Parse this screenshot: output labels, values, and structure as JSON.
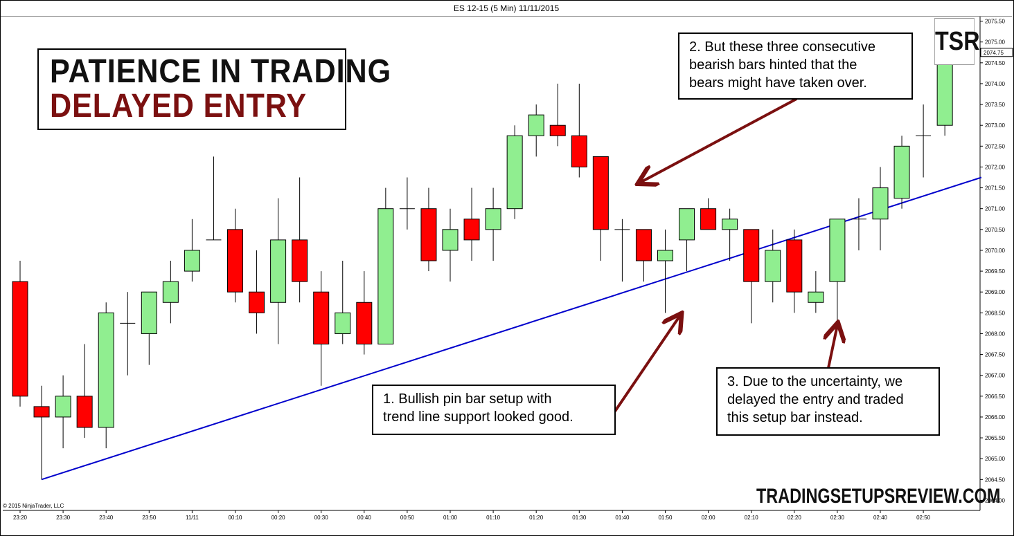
{
  "window": {
    "title": "ES 12-15 (5 Min)  11/11/2015"
  },
  "overlay": {
    "title_line1": "PATIENCE IN TRADING",
    "title_line2": "DELAYED ENTRY",
    "logo": "TSR",
    "watermark": "TRADINGSETUPSREVIEW.COM",
    "copyright": "© 2015 NinjaTrader, LLC"
  },
  "notes": {
    "note1": [
      "1. Bullish  pin bar setup with",
      "trend line support looked good."
    ],
    "note2": [
      "2. But these three consecutive",
      "bearish bars hinted that the",
      "bears might have taken over."
    ],
    "note3": [
      "3. Due to the uncertainty, we",
      "delayed the entry and traded",
      "this setup bar instead."
    ]
  },
  "colors": {
    "bull": "#90ee90",
    "bear": "#ff0000",
    "trendline": "#0000cc",
    "arrow": "#7b1010",
    "title_accent": "#7b1010"
  },
  "chart_data": {
    "type": "candlestick",
    "symbol": "ES 12-15",
    "interval": "5 Min",
    "date": "11/11/2015",
    "ylim": [
      2063.8,
      2075.8
    ],
    "last_price_label": "2074.75",
    "y_ticks": [
      "2064.00",
      "2064.50",
      "2065.00",
      "2065.50",
      "2066.00",
      "2066.50",
      "2067.00",
      "2067.50",
      "2068.00",
      "2068.50",
      "2069.00",
      "2069.50",
      "2070.00",
      "2070.50",
      "2071.00",
      "2071.50",
      "2072.00",
      "2072.50",
      "2073.00",
      "2073.50",
      "2074.00",
      "2074.50",
      "2075.00",
      "2075.50"
    ],
    "x_ticks": [
      "23:20",
      "23:30",
      "23:40",
      "23:50",
      "11/11",
      "00:10",
      "00:20",
      "00:30",
      "00:40",
      "00:50",
      "01:00",
      "01:10",
      "01:20",
      "01:30",
      "01:40",
      "01:50",
      "02:00",
      "02:10",
      "02:20",
      "02:30",
      "02:40",
      "02:50"
    ],
    "candles": [
      {
        "o": 2069.25,
        "h": 2069.75,
        "l": 2066.25,
        "c": 2066.5
      },
      {
        "o": 2066.25,
        "h": 2066.75,
        "l": 2064.5,
        "c": 2066.0
      },
      {
        "o": 2066.0,
        "h": 2067.0,
        "l": 2065.25,
        "c": 2066.5
      },
      {
        "o": 2066.5,
        "h": 2067.75,
        "l": 2065.5,
        "c": 2065.75
      },
      {
        "o": 2065.75,
        "h": 2068.75,
        "l": 2065.25,
        "c": 2068.5
      },
      {
        "o": 2068.25,
        "h": 2069.0,
        "l": 2067.0,
        "c": 2068.25
      },
      {
        "o": 2068.0,
        "h": 2069.0,
        "l": 2067.25,
        "c": 2069.0
      },
      {
        "o": 2068.75,
        "h": 2069.75,
        "l": 2068.25,
        "c": 2069.25
      },
      {
        "o": 2069.5,
        "h": 2070.75,
        "l": 2069.25,
        "c": 2070.0
      },
      {
        "o": 2070.25,
        "h": 2072.25,
        "l": 2070.25,
        "c": 2070.25
      },
      {
        "o": 2070.5,
        "h": 2071.0,
        "l": 2068.75,
        "c": 2069.0
      },
      {
        "o": 2069.0,
        "h": 2070.0,
        "l": 2068.0,
        "c": 2068.5
      },
      {
        "o": 2068.75,
        "h": 2071.25,
        "l": 2067.75,
        "c": 2070.25
      },
      {
        "o": 2070.25,
        "h": 2071.75,
        "l": 2068.75,
        "c": 2069.25
      },
      {
        "o": 2069.0,
        "h": 2069.5,
        "l": 2066.75,
        "c": 2067.75
      },
      {
        "o": 2068.0,
        "h": 2069.75,
        "l": 2067.75,
        "c": 2068.5
      },
      {
        "o": 2068.75,
        "h": 2069.5,
        "l": 2067.5,
        "c": 2067.75
      },
      {
        "o": 2067.75,
        "h": 2071.5,
        "l": 2067.75,
        "c": 2071.0
      },
      {
        "o": 2071.0,
        "h": 2071.75,
        "l": 2070.5,
        "c": 2071.0
      },
      {
        "o": 2071.0,
        "h": 2071.5,
        "l": 2069.5,
        "c": 2069.75
      },
      {
        "o": 2070.0,
        "h": 2071.0,
        "l": 2069.25,
        "c": 2070.5
      },
      {
        "o": 2070.75,
        "h": 2071.5,
        "l": 2069.75,
        "c": 2070.25
      },
      {
        "o": 2070.5,
        "h": 2071.5,
        "l": 2069.75,
        "c": 2071.0
      },
      {
        "o": 2071.0,
        "h": 2073.0,
        "l": 2070.75,
        "c": 2072.75
      },
      {
        "o": 2072.75,
        "h": 2073.5,
        "l": 2072.25,
        "c": 2073.25
      },
      {
        "o": 2073.0,
        "h": 2074.0,
        "l": 2072.5,
        "c": 2072.75
      },
      {
        "o": 2072.75,
        "h": 2074.0,
        "l": 2071.75,
        "c": 2072.0
      },
      {
        "o": 2072.25,
        "h": 2072.25,
        "l": 2069.75,
        "c": 2070.5
      },
      {
        "o": 2070.5,
        "h": 2070.75,
        "l": 2069.25,
        "c": 2070.5
      },
      {
        "o": 2070.5,
        "h": 2070.5,
        "l": 2069.25,
        "c": 2069.75
      },
      {
        "o": 2069.75,
        "h": 2070.5,
        "l": 2068.5,
        "c": 2070.0
      },
      {
        "o": 2070.25,
        "h": 2071.0,
        "l": 2069.5,
        "c": 2071.0
      },
      {
        "o": 2071.0,
        "h": 2071.25,
        "l": 2070.5,
        "c": 2070.5
      },
      {
        "o": 2070.5,
        "h": 2071.0,
        "l": 2069.75,
        "c": 2070.75
      },
      {
        "o": 2070.5,
        "h": 2070.5,
        "l": 2068.25,
        "c": 2069.25
      },
      {
        "o": 2069.25,
        "h": 2070.5,
        "l": 2068.75,
        "c": 2070.0
      },
      {
        "o": 2070.25,
        "h": 2070.5,
        "l": 2068.5,
        "c": 2069.0
      },
      {
        "o": 2068.75,
        "h": 2069.5,
        "l": 2068.5,
        "c": 2069.0
      },
      {
        "o": 2069.25,
        "h": 2070.75,
        "l": 2068.25,
        "c": 2070.75
      },
      {
        "o": 2070.75,
        "h": 2071.25,
        "l": 2070.0,
        "c": 2070.75
      },
      {
        "o": 2070.75,
        "h": 2072.0,
        "l": 2070.0,
        "c": 2071.5
      },
      {
        "o": 2071.25,
        "h": 2072.75,
        "l": 2071.0,
        "c": 2072.5
      },
      {
        "o": 2072.75,
        "h": 2073.5,
        "l": 2071.75,
        "c": 2072.75
      },
      {
        "o": 2073.0,
        "h": 2075.25,
        "l": 2072.75,
        "c": 2074.75
      }
    ],
    "trendline": {
      "from_index": 1,
      "from_price": 2064.5,
      "to_index": 44.7,
      "to_price": 2071.75
    }
  }
}
